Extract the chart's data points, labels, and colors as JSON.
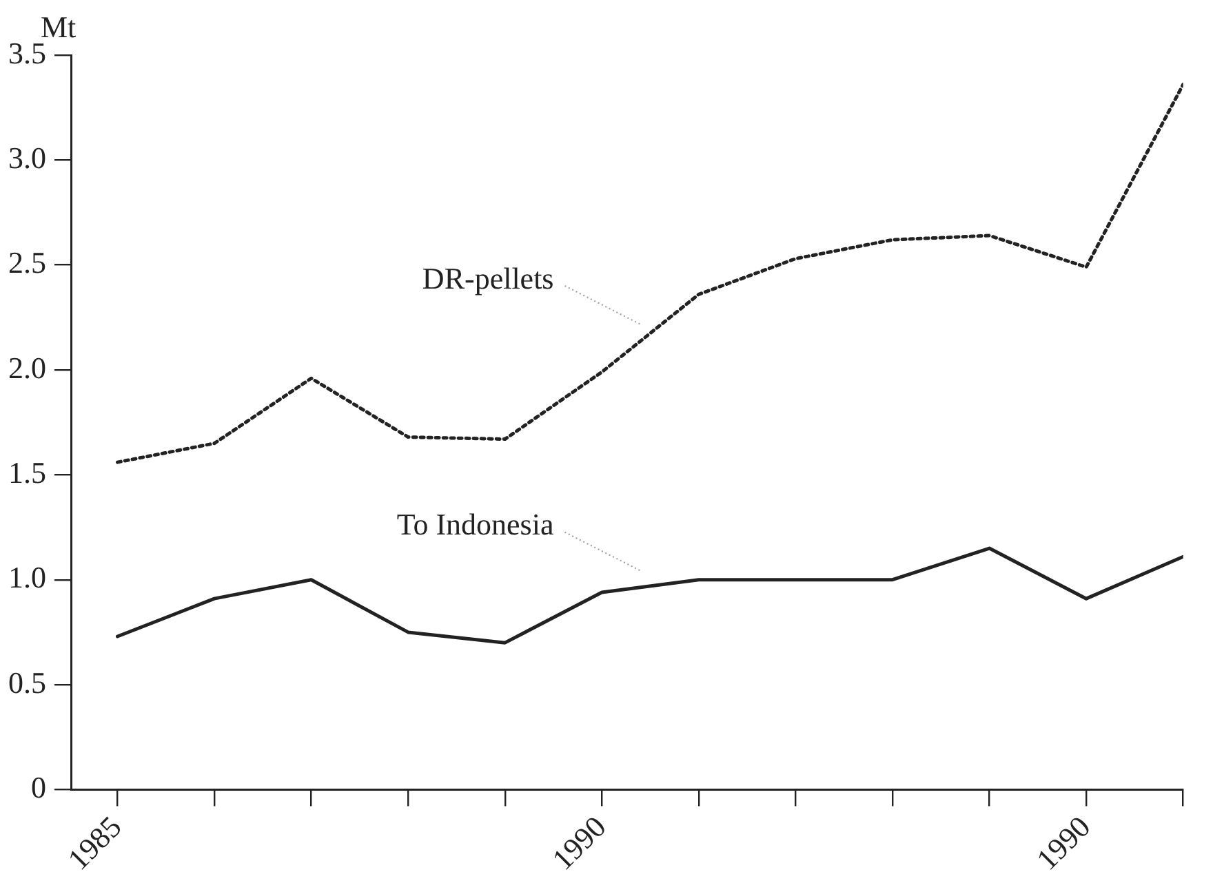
{
  "chart_data": {
    "type": "line",
    "ylabel": "Mt",
    "categories": [
      "1985",
      null,
      null,
      null,
      null,
      "1990",
      null,
      null,
      null,
      null,
      "1990",
      null
    ],
    "series": [
      {
        "name": "DR-pellets",
        "color": "#222222",
        "line_style": "dotted",
        "values": [
          1.56,
          1.65,
          1.96,
          1.68,
          1.67,
          1.99,
          2.36,
          2.53,
          2.62,
          2.64,
          2.49,
          3.36
        ]
      },
      {
        "name": "To Indonesia",
        "color": "#222222",
        "line_style": "solid",
        "values": [
          0.73,
          0.91,
          1.0,
          0.75,
          0.7,
          0.94,
          1.0,
          1.0,
          1.0,
          1.15,
          0.91,
          1.11
        ]
      }
    ],
    "ylim": [
      0,
      3.5
    ],
    "yticks": [
      0,
      0.5,
      {
        "value": 1,
        "label": "1.0"
      },
      1.5,
      {
        "value": 2,
        "label": "2.0"
      },
      2.5,
      {
        "value": 3,
        "label": "3.0"
      },
      3.5
    ],
    "grid": false,
    "legend": false,
    "marker": "none"
  }
}
